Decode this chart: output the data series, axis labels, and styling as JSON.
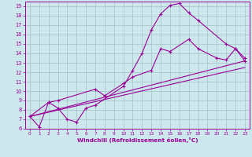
{
  "xlabel": "Windchill (Refroidissement éolien,°C)",
  "xlim": [
    -0.5,
    23.5
  ],
  "ylim": [
    6,
    19.5
  ],
  "yticks": [
    6,
    7,
    8,
    9,
    10,
    11,
    12,
    13,
    14,
    15,
    16,
    17,
    18,
    19
  ],
  "xticks": [
    0,
    1,
    2,
    3,
    4,
    5,
    6,
    7,
    8,
    9,
    10,
    11,
    12,
    13,
    14,
    15,
    16,
    17,
    18,
    19,
    20,
    21,
    22,
    23
  ],
  "bg_color": "#cde8ec",
  "grid_color": "#aac8cc",
  "line_color": "#990099",
  "line1_x": [
    0,
    1,
    2,
    3,
    4,
    5,
    6,
    7,
    10,
    11,
    12,
    13,
    14,
    15,
    16,
    17,
    18,
    21,
    22,
    23
  ],
  "line1_y": [
    7.3,
    6.2,
    8.8,
    8.2,
    7.0,
    6.7,
    8.2,
    8.5,
    10.5,
    12.2,
    14.0,
    16.5,
    18.2,
    19.1,
    19.3,
    18.3,
    17.5,
    15.0,
    14.5,
    13.5
  ],
  "line2_x": [
    0,
    2,
    3,
    7,
    8,
    10,
    11,
    13,
    14,
    15,
    17,
    18,
    20,
    21,
    22,
    23
  ],
  "line2_y": [
    7.3,
    8.8,
    9.0,
    10.2,
    9.5,
    10.8,
    11.5,
    12.2,
    14.5,
    14.2,
    15.5,
    14.5,
    13.5,
    13.3,
    14.5,
    13.2
  ],
  "line3_x": [
    0,
    23
  ],
  "line3_y": [
    7.3,
    13.2
  ],
  "line4_x": [
    0,
    23
  ],
  "line4_y": [
    7.3,
    12.5
  ]
}
